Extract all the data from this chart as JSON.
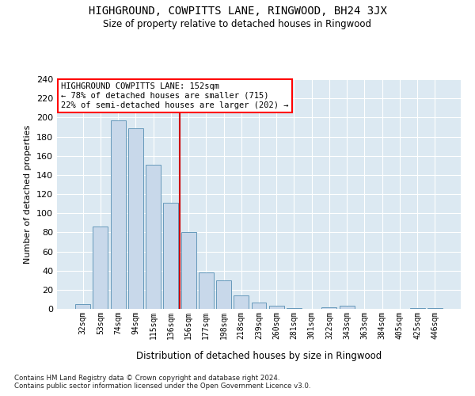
{
  "title": "HIGHGROUND, COWPITTS LANE, RINGWOOD, BH24 3JX",
  "subtitle": "Size of property relative to detached houses in Ringwood",
  "xlabel": "Distribution of detached houses by size in Ringwood",
  "ylabel": "Number of detached properties",
  "bar_color": "#c8d8ea",
  "bar_edge_color": "#6699bb",
  "background_color": "#dce9f2",
  "grid_color": "#ffffff",
  "categories": [
    "32sqm",
    "53sqm",
    "74sqm",
    "94sqm",
    "115sqm",
    "136sqm",
    "156sqm",
    "177sqm",
    "198sqm",
    "218sqm",
    "239sqm",
    "260sqm",
    "281sqm",
    "301sqm",
    "322sqm",
    "343sqm",
    "363sqm",
    "384sqm",
    "405sqm",
    "425sqm",
    "446sqm"
  ],
  "values": [
    5,
    86,
    197,
    189,
    151,
    111,
    80,
    38,
    30,
    14,
    7,
    3,
    1,
    0,
    2,
    3,
    0,
    0,
    0,
    1,
    1
  ],
  "vline_position": 5.5,
  "vline_color": "#cc0000",
  "annotation_title": "HIGHGROUND COWPITTS LANE: 152sqm",
  "annotation_line1": "← 78% of detached houses are smaller (715)",
  "annotation_line2": "22% of semi-detached houses are larger (202) →",
  "footnote1": "Contains HM Land Registry data © Crown copyright and database right 2024.",
  "footnote2": "Contains public sector information licensed under the Open Government Licence v3.0.",
  "ylim": [
    0,
    240
  ],
  "yticks": [
    0,
    20,
    40,
    60,
    80,
    100,
    120,
    140,
    160,
    180,
    200,
    220,
    240
  ]
}
